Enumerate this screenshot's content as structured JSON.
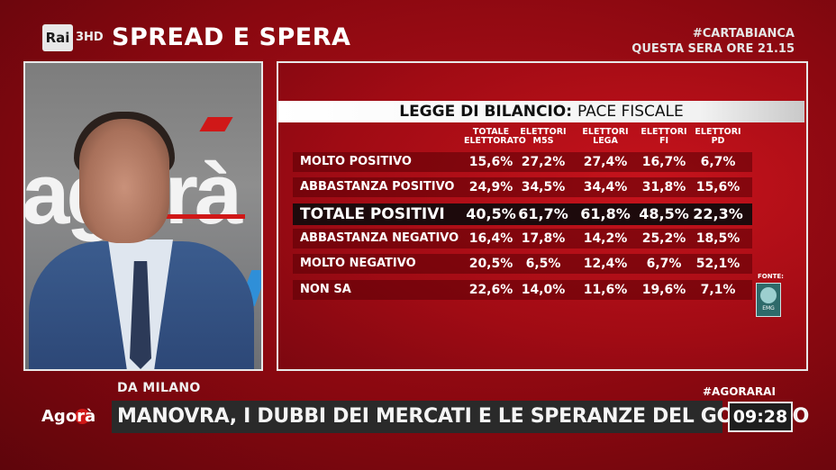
{
  "header": {
    "channel": "Rai",
    "channel_sub": "3HD",
    "title": "SPREAD E SPERA",
    "promo_hashtag": "#CARTABIANCA",
    "promo_time": "QUESTA SERA ORE 21.15"
  },
  "video": {
    "bg_text": "agorà"
  },
  "poll": {
    "title_bold": "LEGGE DI BILANCIO:",
    "title_rest": "PACE FISCALE",
    "columns": [
      {
        "line1": "TOTALE",
        "line2": "ELETTORATO"
      },
      {
        "line1": "ELETTORI",
        "line2": "M5S"
      },
      {
        "line1": "ELETTORI",
        "line2": "LEGA"
      },
      {
        "line1": "ELETTORI",
        "line2": "FI"
      },
      {
        "line1": "ELETTORI",
        "line2": "PD"
      }
    ],
    "rows": [
      {
        "label": "MOLTO POSITIVO",
        "values": [
          "15,6%",
          "27,2%",
          "27,4%",
          "16,7%",
          "6,7%"
        ]
      },
      {
        "label": "ABBASTANZA POSITIVO",
        "values": [
          "24,9%",
          "34,5%",
          "34,4%",
          "31,8%",
          "15,6%"
        ]
      },
      {
        "label": "TOTALE POSITIVI",
        "values": [
          "40,5%",
          "61,7%",
          "61,8%",
          "48,5%",
          "22,3%"
        ]
      },
      {
        "label": "ABBASTANZA NEGATIVO",
        "values": [
          "16,4%",
          "17,8%",
          "14,2%",
          "25,2%",
          "18,5%"
        ]
      },
      {
        "label": "MOLTO NEGATIVO",
        "values": [
          "20,5%",
          "6,5%",
          "12,4%",
          "6,7%",
          "52,1%"
        ]
      },
      {
        "label": "NON SA",
        "values": [
          "22,6%",
          "14,0%",
          "11,6%",
          "19,6%",
          "7,1%"
        ]
      }
    ],
    "source_label": "FONTE:",
    "source_name": "EMG"
  },
  "bottom": {
    "location": "DA MILANO",
    "hashtag": "#AGORARAI",
    "program_logo": "Agorà",
    "headline": "MANOVRA, I DUBBI DEI MERCATI E LE SPERANZE DEL GOVERNO",
    "clock": "09:28"
  }
}
